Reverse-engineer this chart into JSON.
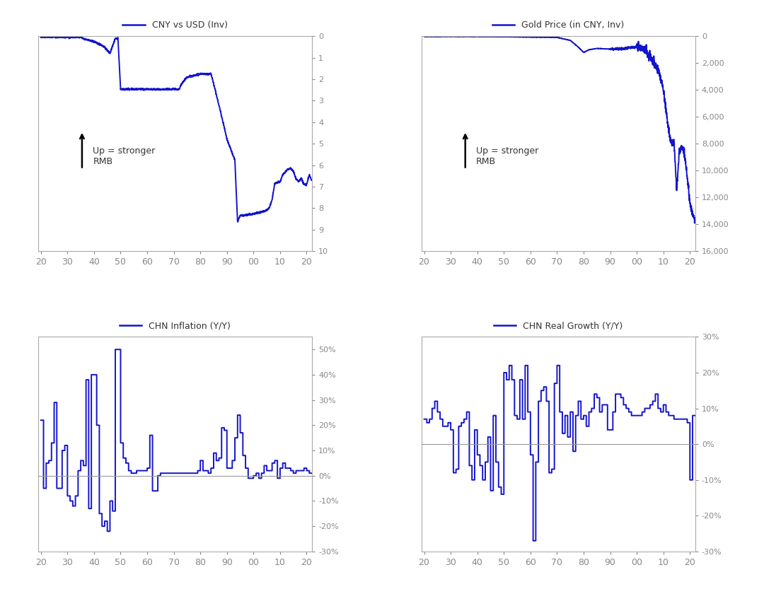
{
  "line_color": "#1414CC",
  "background_color": "#ffffff",
  "chart1": {
    "title": "CNY vs USD (Inv)",
    "ylim": [
      10,
      0
    ],
    "yticks": [
      0,
      1,
      2,
      3,
      4,
      5,
      6,
      7,
      8,
      9,
      10
    ],
    "xlabels": [
      "20",
      "30",
      "40",
      "50",
      "60",
      "70",
      "80",
      "90",
      "00",
      "10",
      "20"
    ]
  },
  "chart2": {
    "title": "Gold Price (in CNY, Inv)",
    "ylim": [
      16000,
      0
    ],
    "yticks": [
      0,
      2000,
      4000,
      6000,
      8000,
      10000,
      12000,
      14000,
      16000
    ],
    "xlabels": [
      "20",
      "30",
      "40",
      "50",
      "60",
      "70",
      "80",
      "90",
      "00",
      "10",
      "20"
    ]
  },
  "chart3": {
    "title": "CHN Inflation (Y/Y)",
    "ylim": [
      -0.3,
      0.55
    ],
    "yticks": [
      -0.3,
      -0.2,
      -0.1,
      0.0,
      0.1,
      0.2,
      0.3,
      0.4,
      0.5
    ],
    "yticklabels": [
      "-30%",
      "-20%",
      "-10%",
      "0%",
      "10%",
      "20%",
      "30%",
      "40%",
      "50%"
    ],
    "xlabels": [
      "20",
      "30",
      "40",
      "50",
      "60",
      "70",
      "80",
      "90",
      "00",
      "10",
      "20"
    ]
  },
  "chart4": {
    "title": "CHN Real Growth (Y/Y)",
    "ylim": [
      -0.3,
      0.3
    ],
    "yticks": [
      -0.3,
      -0.2,
      -0.1,
      0.0,
      0.1,
      0.2,
      0.3
    ],
    "yticklabels": [
      "-30%",
      "-20%",
      "-10%",
      "0%",
      "10%",
      "20%",
      "30%"
    ],
    "xlabels": [
      "20",
      "30",
      "40",
      "50",
      "60",
      "70",
      "80",
      "90",
      "00",
      "10",
      "20"
    ]
  }
}
